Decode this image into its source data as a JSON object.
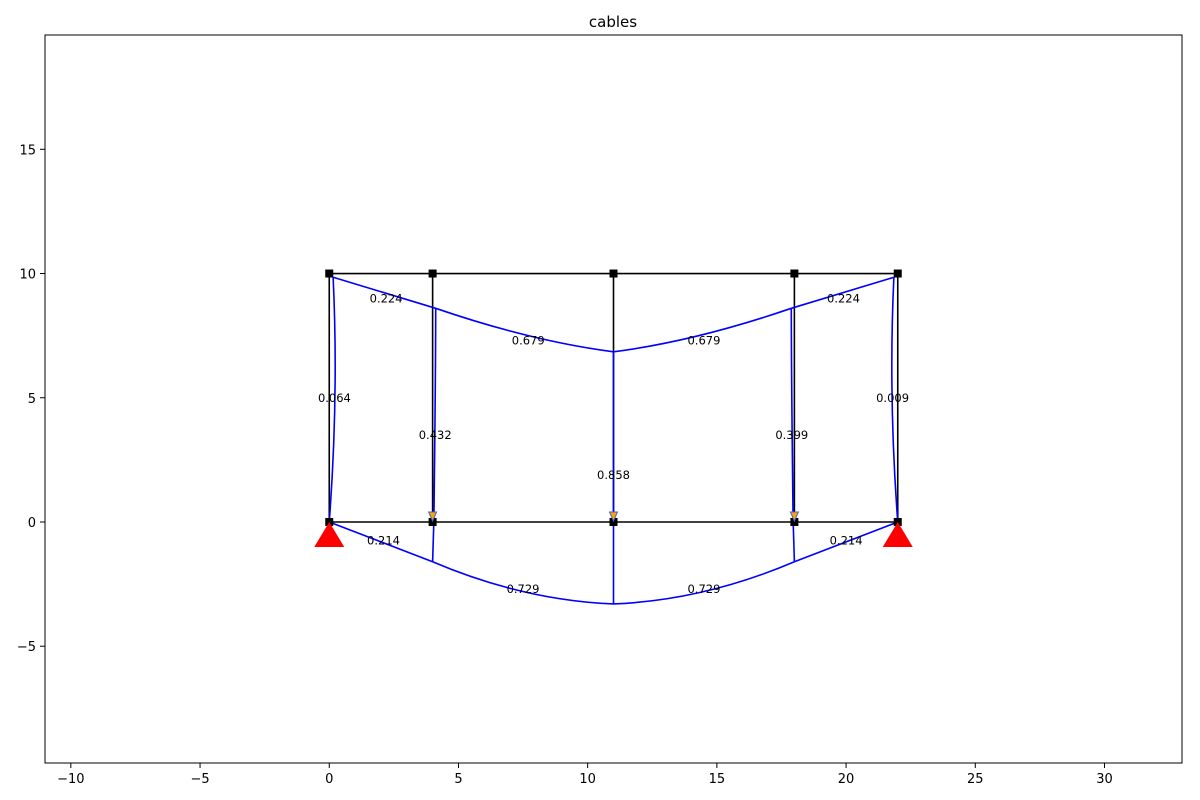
{
  "chart_data": {
    "type": "structural-diagram",
    "title": "cables",
    "xlabel": "",
    "ylabel": "",
    "xlim": [
      -11,
      33
    ],
    "ylim": [
      -9.7,
      19.6
    ],
    "xticks": [
      -10,
      -5,
      0,
      5,
      10,
      15,
      20,
      25,
      30
    ],
    "yticks": [
      -5,
      0,
      5,
      10,
      15
    ],
    "xtick_labels": [
      "−10",
      "−5",
      "0",
      "5",
      "10",
      "15",
      "20",
      "25",
      "30"
    ],
    "ytick_labels": [
      "−5",
      "0",
      "5",
      "10",
      "15"
    ],
    "colors": {
      "frame": "#000000",
      "deformed": "#0000ff",
      "support": "#ff0000",
      "load": "#ffa500"
    },
    "nodes": [
      {
        "x": 0,
        "y": 10
      },
      {
        "x": 4,
        "y": 10
      },
      {
        "x": 11,
        "y": 10
      },
      {
        "x": 18,
        "y": 10
      },
      {
        "x": 22,
        "y": 10
      },
      {
        "x": 0,
        "y": 0
      },
      {
        "x": 4,
        "y": 0
      },
      {
        "x": 11,
        "y": 0
      },
      {
        "x": 18,
        "y": 0
      },
      {
        "x": 22,
        "y": 0
      }
    ],
    "frame_members": [
      [
        [
          0,
          10
        ],
        [
          22,
          10
        ]
      ],
      [
        [
          0,
          0
        ],
        [
          22,
          0
        ]
      ],
      [
        [
          0,
          0
        ],
        [
          0,
          10
        ]
      ],
      [
        [
          4,
          0
        ],
        [
          4,
          10
        ]
      ],
      [
        [
          11,
          0
        ],
        [
          11,
          10
        ]
      ],
      [
        [
          18,
          0
        ],
        [
          18,
          10
        ]
      ],
      [
        [
          22,
          0
        ],
        [
          22,
          10
        ]
      ]
    ],
    "cables": [
      {
        "points": [
          [
            0,
            0
          ],
          [
            0.22,
            5
          ],
          [
            0.15,
            9.85
          ]
        ],
        "label": "0.064",
        "label_at": [
          0.2,
          5.0
        ]
      },
      {
        "points": [
          [
            4.05,
            0.1
          ],
          [
            4.1,
            5
          ],
          [
            4.12,
            8.6
          ]
        ],
        "label": "0.432",
        "label_at": [
          4.1,
          3.5
        ]
      },
      {
        "points": [
          [
            11,
            0
          ],
          [
            11,
            6.85
          ]
        ],
        "label": "0.858",
        "label_at": [
          11,
          1.9
        ]
      },
      {
        "points": [
          [
            17.95,
            0.1
          ],
          [
            17.9,
            5
          ],
          [
            17.88,
            8.6
          ]
        ],
        "label": "0.399",
        "label_at": [
          17.9,
          3.5
        ]
      },
      {
        "points": [
          [
            22,
            0
          ],
          [
            21.78,
            5
          ],
          [
            21.85,
            9.85
          ]
        ],
        "label": "0.009",
        "label_at": [
          21.8,
          5.0
        ]
      },
      {
        "points": [
          [
            0.15,
            9.85
          ],
          [
            4.12,
            8.6
          ]
        ],
        "label": "0.224",
        "label_at": [
          2.2,
          9.0
        ]
      },
      {
        "points": [
          [
            4.12,
            8.6
          ],
          [
            7.7,
            7.5
          ],
          [
            11,
            6.85
          ]
        ],
        "label": "0.679",
        "label_at": [
          7.7,
          7.3
        ]
      },
      {
        "points": [
          [
            11,
            6.85
          ],
          [
            14.3,
            7.5
          ],
          [
            17.88,
            8.6
          ]
        ],
        "label": "0.679",
        "label_at": [
          14.5,
          7.3
        ]
      },
      {
        "points": [
          [
            17.88,
            8.6
          ],
          [
            21.85,
            9.85
          ]
        ],
        "label": "0.224",
        "label_at": [
          19.9,
          9.0
        ]
      },
      {
        "points": [
          [
            0,
            0
          ],
          [
            4,
            -1.6
          ]
        ],
        "label": "0.214",
        "label_at": [
          2.1,
          -0.75
        ]
      },
      {
        "points": [
          [
            4,
            -1.6
          ],
          [
            7.5,
            -2.8
          ],
          [
            11,
            -3.3
          ]
        ],
        "label": "0.729",
        "label_at": [
          7.5,
          -2.7
        ]
      },
      {
        "points": [
          [
            11,
            -3.3
          ],
          [
            14.5,
            -2.8
          ],
          [
            18,
            -1.6
          ]
        ],
        "label": "0.729",
        "label_at": [
          14.5,
          -2.7
        ]
      },
      {
        "points": [
          [
            18,
            -1.6
          ],
          [
            22,
            0
          ]
        ],
        "label": "0.214",
        "label_at": [
          20.0,
          -0.75
        ]
      },
      {
        "points": [
          [
            4,
            -1.6
          ],
          [
            4.05,
            0.1
          ]
        ],
        "label": "",
        "label_at": [
          4,
          0
        ]
      },
      {
        "points": [
          [
            11,
            -3.3
          ],
          [
            11,
            0
          ]
        ],
        "label": "",
        "label_at": [
          11,
          0
        ]
      },
      {
        "points": [
          [
            18,
            -1.6
          ],
          [
            17.95,
            0.1
          ]
        ],
        "label": "",
        "label_at": [
          18,
          0
        ]
      }
    ],
    "supports": [
      {
        "x": 0,
        "y": 0
      },
      {
        "x": 22,
        "y": 0
      }
    ],
    "loads": [
      {
        "x": 4,
        "y": 0
      },
      {
        "x": 11,
        "y": 0
      },
      {
        "x": 18,
        "y": 0
      }
    ]
  }
}
